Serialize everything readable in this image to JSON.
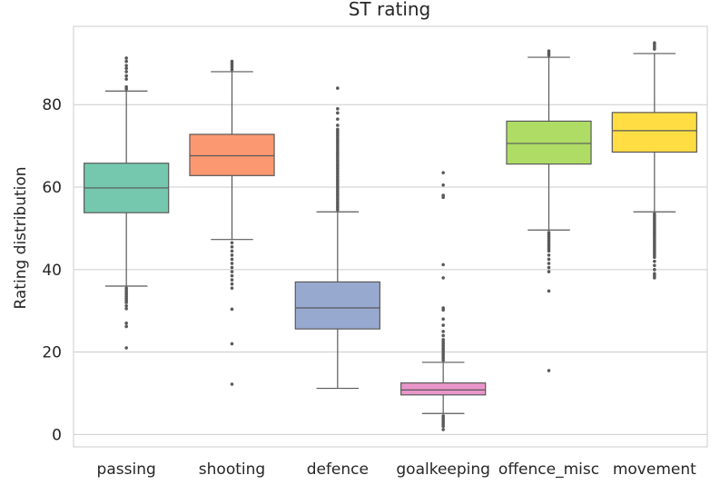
{
  "chart_data": {
    "type": "boxplot",
    "title": "ST rating",
    "ylabel": "Rating distribution",
    "xlabel": "",
    "ylim": [
      -3,
      99
    ],
    "yticks": [
      0,
      20,
      40,
      60,
      80
    ],
    "grid": "horizontal",
    "categories": [
      "passing",
      "shooting",
      "defence",
      "goalkeeping",
      "offence_misc",
      "movement"
    ],
    "colors": [
      "#66c2a5",
      "#fc8d62",
      "#8da0cb",
      "#e78ac3",
      "#a6d854",
      "#ffd92f"
    ],
    "boxes": [
      {
        "category": "passing",
        "whisker_low": 36,
        "q1": 53.8,
        "median": 59.8,
        "q3": 65.8,
        "whisker_high": 83.3,
        "outliers": [
          21,
          26.2,
          27,
          30.5,
          31.2,
          32,
          32.5,
          33,
          33.5,
          34,
          34.5,
          35,
          35.5,
          83.8,
          84.3,
          86.2,
          87,
          88,
          88.8,
          89.5,
          90.5,
          91.3
        ]
      },
      {
        "category": "shooting",
        "whisker_low": 47.3,
        "q1": 62.8,
        "median": 67.6,
        "q3": 72.8,
        "whisker_high": 88,
        "outliers": [
          12.2,
          22,
          30.4,
          35.5,
          36.5,
          37.5,
          38.5,
          39.5,
          40.5,
          41.5,
          42.5,
          43.5,
          44.5,
          45.5,
          46.5,
          88.5,
          89,
          89.5,
          90,
          90.5
        ]
      },
      {
        "category": "defence",
        "whisker_low": 11.2,
        "q1": 25.6,
        "median": 30.7,
        "q3": 37,
        "whisker_high": 54,
        "outliers": [
          54.5,
          55,
          55.5,
          56,
          56.5,
          57,
          57.5,
          58,
          58.5,
          59,
          59.5,
          60,
          60.5,
          61,
          61.5,
          62,
          62.5,
          63,
          63.5,
          64,
          64.5,
          65,
          65.5,
          66,
          66.5,
          67,
          67.5,
          68,
          68.5,
          69,
          69.5,
          70,
          70.5,
          71,
          71.5,
          72,
          72.5,
          73,
          73.5,
          74,
          75,
          76.5,
          78,
          79,
          84
        ]
      },
      {
        "category": "goalkeeping",
        "whisker_low": 5.1,
        "q1": 9.6,
        "median": 10.8,
        "q3": 12.5,
        "whisker_high": 17.5,
        "outliers": [
          1.2,
          2,
          2.5,
          3,
          3.5,
          4,
          4.5,
          18,
          18.5,
          19,
          19.5,
          20,
          20.5,
          21,
          21.5,
          22,
          22.5,
          23,
          24,
          25,
          26.5,
          28,
          30.2,
          30.7,
          38,
          41.2,
          57.5,
          58,
          60.5,
          63.5
        ]
      },
      {
        "category": "offence_misc",
        "whisker_low": 49.6,
        "q1": 65.6,
        "median": 70.6,
        "q3": 76,
        "whisker_high": 91.5,
        "outliers": [
          15.5,
          34.8,
          39.5,
          40.5,
          41.5,
          42.5,
          43.5,
          44.5,
          45,
          45.5,
          46,
          46.5,
          47,
          47.5,
          48,
          48.5,
          49,
          92,
          92.5,
          93
        ]
      },
      {
        "category": "movement",
        "whisker_low": 54,
        "q1": 68.5,
        "median": 73.7,
        "q3": 78.1,
        "whisker_high": 92.4,
        "outliers": [
          38,
          38.5,
          39,
          40,
          41,
          42,
          43,
          43.5,
          44,
          44.5,
          45,
          45.5,
          46,
          46.5,
          47,
          47.5,
          48,
          48.5,
          49,
          49.5,
          50,
          50.5,
          51,
          51.5,
          52,
          52.5,
          53,
          53.5,
          93.5,
          94,
          94.5,
          95
        ]
      }
    ]
  }
}
